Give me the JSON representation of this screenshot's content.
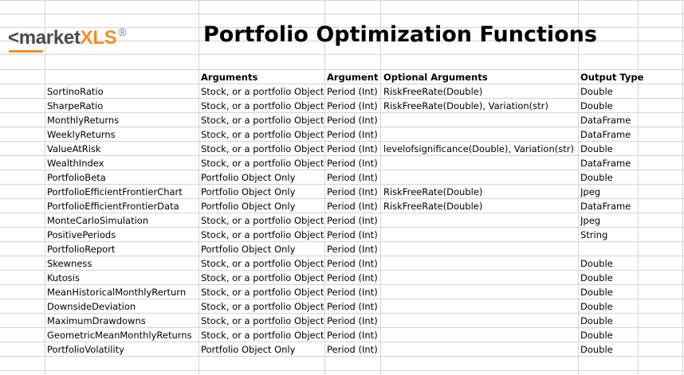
{
  "logo": {
    "prefix": "<",
    "main": "market",
    "accent": "XLS",
    "mark": "®"
  },
  "title": "Portfolio Optimization Functions",
  "headers": {
    "arguments": "Arguments",
    "argument": "Argument",
    "optional": "Optional Arguments",
    "output": "Output Type"
  },
  "rows": [
    {
      "fn": "SortinoRatio",
      "args": "Stock, or a portfolio Object",
      "arg": "Period (Int)",
      "opt": "RiskFreeRate(Double)",
      "out": "Double"
    },
    {
      "fn": "SharpeRatio",
      "args": "Stock, or a portfolio Object",
      "arg": "Period (Int)",
      "opt": "RiskFreeRate(Double), Variation(str)",
      "out": "Double"
    },
    {
      "fn": "MonthlyReturns",
      "args": "Stock, or a portfolio Object",
      "arg": "Period (Int)",
      "opt": "",
      "out": "DataFrame"
    },
    {
      "fn": "WeeklyReturns",
      "args": "Stock, or a portfolio Object",
      "arg": "Period (Int)",
      "opt": "",
      "out": "DataFrame"
    },
    {
      "fn": "ValueAtRisk",
      "args": "Stock, or a portfolio Object",
      "arg": "Period (Int)",
      "opt": "levelofsignificance(Double), Variation(str)",
      "out": "Double"
    },
    {
      "fn": "WealthIndex",
      "args": "Stock, or a portfolio Object",
      "arg": "Period (Int)",
      "opt": "",
      "out": "DataFrame"
    },
    {
      "fn": "PortfolioBeta",
      "args": "Portfolio Object Only",
      "arg": "Period (Int)",
      "opt": "",
      "out": "Double"
    },
    {
      "fn": "PortfolioEfficientFrontierChart",
      "args": "Portfolio Object Only",
      "arg": "Period (Int)",
      "opt": "RiskFreeRate(Double)",
      "out": "Jpeg"
    },
    {
      "fn": "PortfolioEfficientFrontierData",
      "args": "Portfolio Object Only",
      "arg": "Period (Int)",
      "opt": "RiskFreeRate(Double)",
      "out": "DataFrame"
    },
    {
      "fn": "MonteCarloSimulation",
      "args": "Stock, or a portfolio Object",
      "arg": "Period (Int)",
      "opt": "",
      "out": "Jpeg"
    },
    {
      "fn": "PositivePeriods",
      "args": "Stock, or a portfolio Object",
      "arg": "Period (Int)",
      "opt": "",
      "out": "String"
    },
    {
      "fn": "PortfolioReport",
      "args": "Portfolio Object Only",
      "arg": "Period (Int)",
      "opt": "",
      "out": ""
    },
    {
      "fn": "Skewness",
      "args": "Stock, or a portfolio Object",
      "arg": "Period (Int)",
      "opt": "",
      "out": "Double"
    },
    {
      "fn": "Kutosis",
      "args": "Stock, or a portfolio Object",
      "arg": "Period (Int)",
      "opt": "",
      "out": "Double"
    },
    {
      "fn": "MeanHistoricalMonthlyRerturn",
      "args": "Stock, or a portfolio Object",
      "arg": "Period (Int)",
      "opt": "",
      "out": "Double"
    },
    {
      "fn": "DownsideDeviation",
      "args": "Stock, or a portfolio Object",
      "arg": "Period (Int)",
      "opt": "",
      "out": "Double"
    },
    {
      "fn": "MaximumDrawdowns",
      "args": "Stock, or a portfolio Object",
      "arg": "Period (Int)",
      "opt": "",
      "out": "Double"
    },
    {
      "fn": "GeometricMeanMonthlyReturns",
      "args": "Stock, or a portfolio Object",
      "arg": "Period (Int)",
      "opt": "",
      "out": "Double"
    },
    {
      "fn": "PortfolioVolatility",
      "args": "Portfolio Object Only",
      "arg": "Period (Int)",
      "opt": "",
      "out": "Double"
    }
  ]
}
